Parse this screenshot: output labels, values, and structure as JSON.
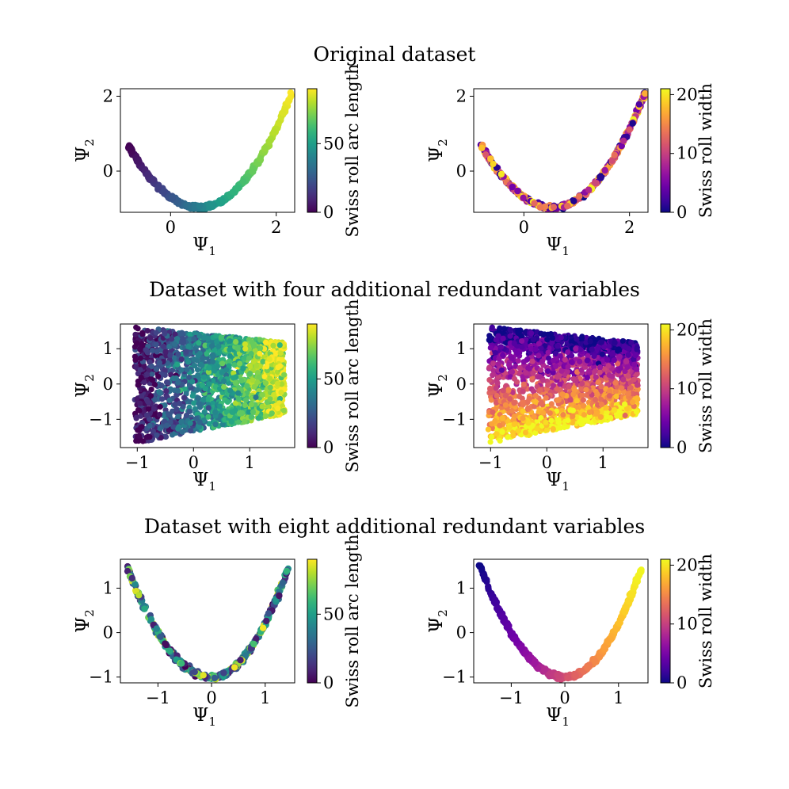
{
  "figure": {
    "row_titles": [
      "Original dataset",
      "Dataset with four additional redundant variables",
      "Dataset with eight additional redundant variables"
    ]
  },
  "colormaps": {
    "viridis": [
      "#440154",
      "#482878",
      "#3e4989",
      "#31688e",
      "#26828e",
      "#1f9e89",
      "#35b779",
      "#6ece58",
      "#b5de2b",
      "#fde725"
    ],
    "plasma": [
      "#0d0887",
      "#46039f",
      "#7201a8",
      "#9c179e",
      "#bd3786",
      "#d8576b",
      "#ed7953",
      "#fb9f3a",
      "#fdca26",
      "#f0f921"
    ]
  },
  "chart_data": [
    {
      "type": "scatter",
      "row": 0,
      "col": 0,
      "xlabel": "Ψ1",
      "ylabel": "Ψ2",
      "xlim": [
        -0.95,
        2.35
      ],
      "ylim": [
        -1.1,
        2.2
      ],
      "xticks": [
        0,
        2
      ],
      "yticks": [
        0,
        2
      ],
      "colorbar": {
        "label": "Swiss roll arc length",
        "cmap": "viridis",
        "range": [
          0,
          90
        ],
        "ticks": [
          0,
          50
        ]
      },
      "structure": "parabola",
      "points": 480,
      "curve": {
        "x_range": [
          -0.8,
          2.3
        ],
        "vertex": [
          0.55,
          -0.97
        ],
        "left_end_y": 0.68,
        "right_end_y": 2.1
      },
      "color_by": "x",
      "color_noise": 0
    },
    {
      "type": "scatter",
      "row": 0,
      "col": 1,
      "xlabel": "Ψ1",
      "ylabel": "Ψ2",
      "xlim": [
        -0.95,
        2.35
      ],
      "ylim": [
        -1.1,
        2.2
      ],
      "xticks": [
        0,
        2
      ],
      "yticks": [
        0,
        2
      ],
      "colorbar": {
        "label": "Swiss roll width",
        "cmap": "plasma",
        "range": [
          0,
          21
        ],
        "ticks": [
          0,
          10,
          20
        ]
      },
      "structure": "parabola",
      "points": 480,
      "curve": {
        "x_range": [
          -0.8,
          2.3
        ],
        "vertex": [
          0.55,
          -0.97
        ],
        "left_end_y": 0.68,
        "right_end_y": 2.1
      },
      "color_by": "random",
      "color_noise": 1
    },
    {
      "type": "scatter",
      "row": 1,
      "col": 0,
      "xlabel": "Ψ1",
      "ylabel": "Ψ2",
      "xlim": [
        -1.3,
        1.8
      ],
      "ylim": [
        -1.8,
        1.7
      ],
      "xticks": [
        -1,
        0,
        1
      ],
      "yticks": [
        -1,
        0,
        1
      ],
      "colorbar": {
        "label": "Swiss roll arc length",
        "cmap": "viridis",
        "range": [
          0,
          90
        ],
        "ticks": [
          0,
          50
        ]
      },
      "structure": "trapezoid",
      "points": 2600,
      "region": {
        "x_range": [
          -1.05,
          1.62
        ],
        "left_y": [
          -1.68,
          1.62
        ],
        "right_y": [
          -0.85,
          1.18
        ]
      },
      "color_by": "x",
      "color_noise": 0.12
    },
    {
      "type": "scatter",
      "row": 1,
      "col": 1,
      "xlabel": "Ψ1",
      "ylabel": "Ψ2",
      "xlim": [
        -1.3,
        1.8
      ],
      "ylim": [
        -1.8,
        1.7
      ],
      "xticks": [
        -1,
        0,
        1
      ],
      "yticks": [
        -1,
        0,
        1
      ],
      "colorbar": {
        "label": "Swiss roll width",
        "cmap": "plasma",
        "range": [
          0,
          21
        ],
        "ticks": [
          0,
          10,
          20
        ]
      },
      "structure": "trapezoid",
      "points": 2600,
      "region": {
        "x_range": [
          -1.05,
          1.62
        ],
        "left_y": [
          -1.68,
          1.62
        ],
        "right_y": [
          -0.85,
          1.18
        ]
      },
      "color_by": "y_inverted",
      "color_noise": 0.1
    },
    {
      "type": "scatter",
      "row": 2,
      "col": 0,
      "xlabel": "Ψ1",
      "ylabel": "Ψ2",
      "xlim": [
        -1.7,
        1.55
      ],
      "ylim": [
        -1.13,
        1.65
      ],
      "xticks": [
        -1,
        0,
        1
      ],
      "yticks": [
        -1,
        0,
        1
      ],
      "colorbar": {
        "label": "Swiss roll arc length",
        "cmap": "viridis",
        "range": [
          0,
          90
        ],
        "ticks": [
          0,
          50
        ]
      },
      "structure": "parabola",
      "points": 480,
      "curve": {
        "x_range": [
          -1.6,
          1.42
        ],
        "vertex": [
          0.0,
          -1.0
        ],
        "left_end_y": 1.55,
        "right_end_y": 1.43
      },
      "color_by": "random",
      "color_noise": 1
    },
    {
      "type": "scatter",
      "row": 2,
      "col": 1,
      "xlabel": "Ψ1",
      "ylabel": "Ψ2",
      "xlim": [
        -1.7,
        1.55
      ],
      "ylim": [
        -1.13,
        1.65
      ],
      "xticks": [
        -1,
        0,
        1
      ],
      "yticks": [
        -1,
        0,
        1
      ],
      "colorbar": {
        "label": "Swiss roll width",
        "cmap": "plasma",
        "range": [
          0,
          21
        ],
        "ticks": [
          0,
          10,
          20
        ]
      },
      "structure": "parabola",
      "points": 480,
      "curve": {
        "x_range": [
          -1.6,
          1.42
        ],
        "vertex": [
          0.0,
          -1.0
        ],
        "left_end_y": 1.55,
        "right_end_y": 1.43
      },
      "color_by": "x",
      "color_noise": 0
    }
  ]
}
